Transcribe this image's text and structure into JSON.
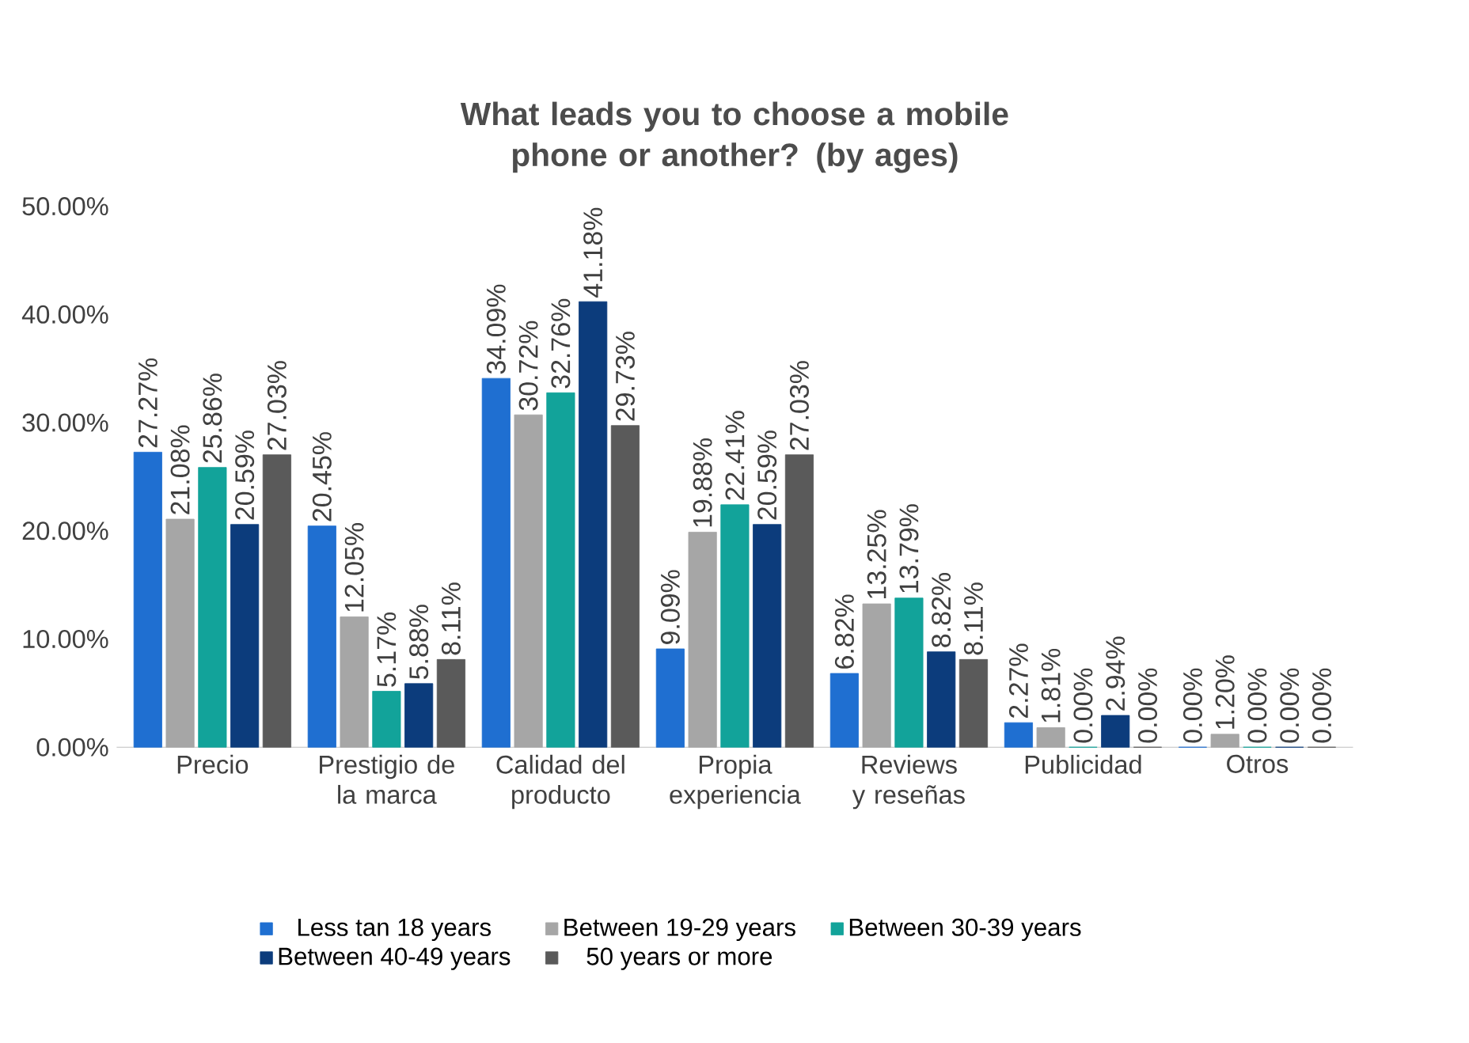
{
  "chart_data": {
    "type": "bar",
    "title": "What leads you to choose a mobile phone or another? (by ages)",
    "categories": [
      "Precio",
      "Prestigio de la marca",
      "Calidad del producto",
      "Propia experiencia",
      "Reviews y reseñas",
      "Publicidad",
      "Otros"
    ],
    "series": [
      {
        "name": "Less tan 18 years",
        "color": "#1f6fd1",
        "values": [
          27.27,
          20.45,
          34.09,
          9.09,
          6.82,
          2.27,
          0.0
        ],
        "value_labels": [
          "27.27%",
          "20.45%",
          "34.09%",
          "9.09%",
          "6.82%",
          "2.27%",
          "0.00%"
        ]
      },
      {
        "name": "Between 19-29 years",
        "color": "#a6a6a6",
        "values": [
          21.08,
          12.05,
          30.72,
          19.88,
          13.25,
          1.81,
          1.2
        ],
        "value_labels": [
          "21.08%",
          "12.05%",
          "30.72%",
          "19.88%",
          "13.25%",
          "1.81%",
          "1.20%"
        ]
      },
      {
        "name": "Between 30-39 years",
        "color": "#12a39a",
        "values": [
          25.86,
          5.17,
          32.76,
          22.41,
          13.79,
          0.0,
          0.0
        ],
        "value_labels": [
          "25.86%",
          "5.17%",
          "32.76%",
          "22.41%",
          "13.79%",
          "0.00%",
          "0.00%"
        ]
      },
      {
        "name": "Between 40-49 years",
        "color": "#0c3c7c",
        "values": [
          20.59,
          5.88,
          41.18,
          20.59,
          8.82,
          2.94,
          0.0
        ],
        "value_labels": [
          "20.59%",
          "5.88%",
          "41.18%",
          "20.59%",
          "8.82%",
          "2.94%",
          "0.00%"
        ]
      },
      {
        "name": "50 years or more",
        "color": "#5a5a5a",
        "values": [
          27.03,
          8.11,
          29.73,
          27.03,
          8.11,
          0.0,
          0.0
        ],
        "value_labels": [
          "27.03%",
          "8.11%",
          "29.73%",
          "27.03%",
          "8.11%",
          "0.00%",
          "0.00%"
        ]
      }
    ],
    "ylim": [
      0,
      50
    ],
    "yticks": [
      {
        "value": 0,
        "label": "0.00%"
      },
      {
        "value": 10,
        "label": "10.00%"
      },
      {
        "value": 20,
        "label": "20.00%"
      },
      {
        "value": 30,
        "label": "30.00%"
      },
      {
        "value": 40,
        "label": "40.00%"
      },
      {
        "value": 50,
        "label": "50.00%"
      }
    ],
    "grid": false,
    "legend": "bottom"
  }
}
